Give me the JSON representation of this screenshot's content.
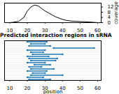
{
  "chart_data": [
    {
      "type": "line",
      "x": [
        10,
        12,
        15,
        18,
        20,
        22,
        24,
        26,
        28,
        30,
        32,
        34,
        36,
        38,
        40,
        42,
        45,
        48,
        50,
        55,
        58,
        60
      ],
      "values": [
        0,
        0.3,
        1,
        4,
        9,
        12,
        13.5,
        13,
        11,
        9,
        7.5,
        6,
        4.5,
        3.5,
        2.5,
        1.8,
        1.2,
        1,
        0.8,
        0.5,
        0.2,
        0
      ],
      "color": "#000000",
      "xlim": [
        7,
        62
      ],
      "xticks": [
        10,
        20,
        30,
        40,
        50,
        60
      ],
      "ylim": [
        0,
        15
      ],
      "yticks": [
        0,
        4,
        8,
        12
      ],
      "y_label": "coverage"
    },
    {
      "type": "range",
      "title": "Predicted interaction regions in sRNA",
      "categories": [
        null,
        null,
        null,
        null,
        null,
        null,
        null,
        null,
        null,
        null,
        null,
        null,
        null,
        null,
        null,
        null,
        null,
        null,
        null
      ],
      "starts": [
        20,
        22,
        21,
        35,
        20,
        22,
        23,
        20,
        21,
        22,
        20,
        24,
        21,
        22,
        20,
        23,
        22,
        20,
        21
      ],
      "ends": [
        31,
        30,
        33,
        58,
        30,
        29,
        40,
        32,
        37,
        36,
        30,
        33,
        28,
        35,
        31,
        30,
        40,
        29,
        33
      ],
      "color": "#1f77b4",
      "marker": "circle",
      "xlim": [
        7,
        62
      ],
      "xticks": [
        10,
        20,
        30,
        40,
        50,
        60
      ],
      "x_label": "position",
      "tick_labels": "x"
    }
  ]
}
